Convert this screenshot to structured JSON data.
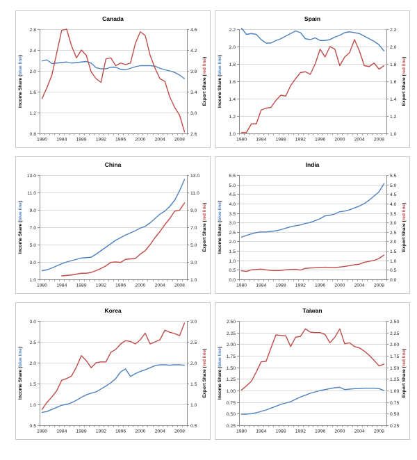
{
  "page": {
    "background": "#FFFFFF"
  },
  "style": {
    "axis_color": "#8C8C8C",
    "grid_color": "#D9D9D9",
    "text_color": "#1F1F1F",
    "panel_border": "#C8C8C8",
    "income_color": "#4F81BD",
    "export_color": "#BE4B48"
  },
  "chart_data": [
    {
      "type": "line",
      "title": "Canada",
      "x_axis": {
        "start_year": 1980,
        "end_year": 2009,
        "ticks": [
          1980,
          1984,
          1988,
          1992,
          1996,
          2000,
          2004,
          2008
        ]
      },
      "left_axis": {
        "label_pre": "Income Share (",
        "label_highlight": "blue line",
        "label_post": ")",
        "highlight_color": "#4F81BD",
        "range": [
          0.8,
          2.8
        ],
        "ticks": [
          "0.8",
          "1.2",
          "1.6",
          "2.0",
          "2.4",
          "2.8"
        ]
      },
      "right_axis": {
        "label_pre": "Export Share (",
        "label_highlight": "red line",
        "label_post": ")",
        "highlight_color": "#BE4B48",
        "range": [
          2.6,
          4.6
        ],
        "ticks": [
          "2.6",
          "3.0",
          "3.4",
          "3.8",
          "4.2",
          "4.6"
        ]
      },
      "series": [
        {
          "name": "Income Share",
          "axis": "left",
          "color": "#4F81BD",
          "start_year": 1980,
          "values": [
            2.19,
            2.21,
            2.14,
            2.15,
            2.16,
            2.17,
            2.15,
            2.16,
            2.17,
            2.18,
            2.15,
            2.06,
            2.04,
            2.04,
            2.07,
            2.07,
            2.03,
            2.02,
            2.05,
            2.08,
            2.1,
            2.1,
            2.1,
            2.09,
            2.05,
            2.02,
            2.0,
            1.97,
            1.92,
            1.85
          ]
        },
        {
          "name": "Export Share",
          "axis": "right",
          "color": "#BE4B48",
          "start_year": 1980,
          "values": [
            3.27,
            3.48,
            3.72,
            4.15,
            4.58,
            4.6,
            4.28,
            4.05,
            4.2,
            4.1,
            3.78,
            3.65,
            3.58,
            4.03,
            4.05,
            3.9,
            3.95,
            3.92,
            3.95,
            4.33,
            4.55,
            4.48,
            4.1,
            3.85,
            3.65,
            3.6,
            3.3,
            3.1,
            2.95,
            2.63
          ]
        }
      ]
    },
    {
      "type": "line",
      "title": "Spain",
      "x_axis": {
        "start_year": 1980,
        "end_year": 2009,
        "ticks": [
          1980,
          1984,
          1988,
          1992,
          1996,
          2000,
          2004,
          2008
        ]
      },
      "left_axis": {
        "label_pre": "Income Share (",
        "label_highlight": "blue line",
        "label_post": ")",
        "highlight_color": "#4F81BD",
        "range": [
          1.0,
          2.2
        ],
        "ticks": [
          "1.0",
          "1.2",
          "1.4",
          "1.6",
          "1.8",
          "2.0",
          "2.2"
        ]
      },
      "right_axis": {
        "label_pre": "Export Share (",
        "label_highlight": "red line",
        "label_post": ")",
        "highlight_color": "#BE4B48",
        "range": [
          1.0,
          2.2
        ],
        "ticks": [
          "1.0",
          "1.2",
          "1.4",
          "1.6",
          "1.8",
          "2.0",
          "2.2"
        ]
      },
      "series": [
        {
          "name": "Income Share",
          "axis": "left",
          "color": "#4F81BD",
          "start_year": 1980,
          "values": [
            2.21,
            2.14,
            2.15,
            2.14,
            2.08,
            2.04,
            2.04,
            2.07,
            2.09,
            2.12,
            2.15,
            2.18,
            2.16,
            2.09,
            2.08,
            2.1,
            2.07,
            2.07,
            2.08,
            2.11,
            2.13,
            2.16,
            2.17,
            2.16,
            2.15,
            2.12,
            2.09,
            2.06,
            2.02,
            1.95
          ]
        },
        {
          "name": "Export Share",
          "axis": "right",
          "color": "#BE4B48",
          "start_year": 1980,
          "values": [
            1.01,
            1.01,
            1.11,
            1.11,
            1.27,
            1.29,
            1.3,
            1.38,
            1.44,
            1.43,
            1.55,
            1.63,
            1.7,
            1.71,
            1.68,
            1.8,
            1.97,
            1.88,
            2.0,
            1.97,
            1.78,
            1.88,
            1.93,
            2.08,
            1.95,
            1.78,
            1.77,
            1.81,
            1.74,
            1.78
          ]
        }
      ]
    },
    {
      "type": "line",
      "title": "China",
      "x_axis": {
        "start_year": 1980,
        "end_year": 2009,
        "ticks": [
          1980,
          1984,
          1988,
          1992,
          1996,
          2000,
          2004,
          2008
        ]
      },
      "left_axis": {
        "label_pre": "Income Share (",
        "label_highlight": "blue line",
        "label_post": ")",
        "highlight_color": "#4F81BD",
        "range": [
          1.0,
          13.0
        ],
        "ticks": [
          "1.0",
          "3.0",
          "5.0",
          "7.0",
          "9.0",
          "11.0",
          "13.0"
        ]
      },
      "right_axis": {
        "label_pre": "Export Share (",
        "label_highlight": "red line",
        "label_post": ")",
        "highlight_color": "#BE4B48",
        "range": [
          1.0,
          13.0
        ],
        "ticks": [
          "1.0",
          "3.0",
          "5.0",
          "7.0",
          "9.0",
          "11.0",
          "13.0"
        ]
      },
      "series": [
        {
          "name": "Income Share",
          "axis": "left",
          "color": "#4F81BD",
          "start_year": 1980,
          "values": [
            2.0,
            2.1,
            2.3,
            2.55,
            2.8,
            3.0,
            3.15,
            3.3,
            3.45,
            3.5,
            3.55,
            3.9,
            4.3,
            4.7,
            5.1,
            5.5,
            5.8,
            6.1,
            6.35,
            6.6,
            6.9,
            7.1,
            7.5,
            8.0,
            8.5,
            8.85,
            9.4,
            10.1,
            11.2,
            12.5
          ]
        },
        {
          "name": "Export Share",
          "axis": "right",
          "color": "#BE4B48",
          "start_year": 1984,
          "values": [
            1.4,
            1.45,
            1.5,
            1.6,
            1.7,
            1.7,
            1.8,
            2.0,
            2.25,
            2.55,
            2.95,
            3.0,
            2.95,
            3.3,
            3.35,
            3.4,
            3.9,
            4.3,
            5.0,
            5.8,
            6.5,
            7.3,
            8.0,
            8.85,
            8.95,
            9.8
          ]
        }
      ]
    },
    {
      "type": "line",
      "title": "India",
      "x_axis": {
        "start_year": 1980,
        "end_year": 2009,
        "ticks": [
          1980,
          1984,
          1988,
          1992,
          1996,
          2000,
          2004,
          2008
        ]
      },
      "left_axis": {
        "label_pre": "Income Share (",
        "label_highlight": "blue line",
        "label_post": ")",
        "highlight_color": "#4F81BD",
        "range": [
          0.0,
          5.5
        ],
        "ticks": [
          "0.0",
          "0.5",
          "1.0",
          "1.5",
          "2.0",
          "2.5",
          "3.0",
          "3.5",
          "4.0",
          "4.5",
          "5.0",
          "5.5"
        ]
      },
      "right_axis": {
        "label_pre": "Export Share (",
        "label_highlight": "red line",
        "label_post": ")",
        "highlight_color": "#BE4B48",
        "range": [
          0.0,
          5.5
        ],
        "ticks": [
          "0.0",
          "0.5",
          "1.0",
          "1.5",
          "2.0",
          "2.5",
          "3.0",
          "3.5",
          "4.0",
          "4.5",
          "5.0",
          "5.5"
        ]
      },
      "series": [
        {
          "name": "Income Share",
          "axis": "left",
          "color": "#4F81BD",
          "start_year": 1980,
          "values": [
            2.23,
            2.32,
            2.4,
            2.47,
            2.5,
            2.5,
            2.53,
            2.56,
            2.62,
            2.7,
            2.77,
            2.83,
            2.87,
            2.95,
            3.0,
            3.1,
            3.2,
            3.35,
            3.38,
            3.45,
            3.57,
            3.6,
            3.67,
            3.77,
            3.87,
            4.0,
            4.18,
            4.4,
            4.62,
            5.05
          ]
        },
        {
          "name": "Export Share",
          "axis": "right",
          "color": "#BE4B48",
          "start_year": 1980,
          "values": [
            0.45,
            0.42,
            0.5,
            0.52,
            0.54,
            0.5,
            0.47,
            0.46,
            0.47,
            0.5,
            0.52,
            0.53,
            0.49,
            0.58,
            0.6,
            0.61,
            0.63,
            0.64,
            0.63,
            0.62,
            0.65,
            0.68,
            0.72,
            0.77,
            0.8,
            0.9,
            0.95,
            1.0,
            1.1,
            1.28
          ]
        }
      ]
    },
    {
      "type": "line",
      "title": "Korea",
      "x_axis": {
        "start_year": 1980,
        "end_year": 2009,
        "ticks": [
          1980,
          1984,
          1988,
          1992,
          1996,
          2000,
          2004,
          2008
        ]
      },
      "left_axis": {
        "label_pre": "Income Share (",
        "label_highlight": "blue line",
        "label_post": ")",
        "highlight_color": "#4F81BD",
        "range": [
          0.5,
          3.0
        ],
        "ticks": [
          "0.5",
          "1.0",
          "1.5",
          "2.0",
          "2.5",
          "3.0"
        ]
      },
      "right_axis": {
        "label_pre": "Export Share (",
        "label_highlight": "red line",
        "label_post": ")",
        "highlight_color": "#BE4B48",
        "range": [
          0.5,
          3.0
        ],
        "ticks": [
          "0.5",
          "1.0",
          "1.5",
          "2.0",
          "2.5",
          "3.0"
        ]
      },
      "series": [
        {
          "name": "Income Share",
          "axis": "left",
          "color": "#4F81BD",
          "start_year": 1980,
          "values": [
            0.81,
            0.83,
            0.88,
            0.93,
            0.98,
            1.0,
            1.04,
            1.1,
            1.17,
            1.23,
            1.27,
            1.3,
            1.37,
            1.44,
            1.52,
            1.62,
            1.78,
            1.85,
            1.67,
            1.74,
            1.79,
            1.83,
            1.88,
            1.93,
            1.95,
            1.95,
            1.94,
            1.95,
            1.95,
            1.94
          ]
        },
        {
          "name": "Export Share",
          "axis": "right",
          "color": "#BE4B48",
          "start_year": 1980,
          "values": [
            0.88,
            1.05,
            1.18,
            1.33,
            1.58,
            1.62,
            1.68,
            1.9,
            2.17,
            2.05,
            1.88,
            2.0,
            2.02,
            2.02,
            2.25,
            2.32,
            2.45,
            2.53,
            2.51,
            2.45,
            2.55,
            2.71,
            2.45,
            2.5,
            2.55,
            2.78,
            2.73,
            2.7,
            2.65,
            2.95
          ]
        }
      ]
    },
    {
      "type": "line",
      "title": "Taiwan",
      "x_axis": {
        "start_year": 1980,
        "end_year": 2009,
        "ticks": [
          1980,
          1984,
          1988,
          1992,
          1996,
          2000,
          2004,
          2008
        ]
      },
      "left_axis": {
        "label_pre": "Income Share (",
        "label_highlight": "blue line",
        "label_post": ")",
        "highlight_color": "#4F81BD",
        "range": [
          0.25,
          2.5
        ],
        "ticks": [
          "0.25",
          "0.50",
          "0.75",
          "1.00",
          "1.25",
          "1.50",
          "1.75",
          "2.00",
          "2.25",
          "2.50"
        ]
      },
      "right_axis": {
        "label_pre": "Export Share (",
        "label_highlight": "red line",
        "label_post": ")",
        "highlight_color": "#BE4B48",
        "range": [
          0.25,
          2.5
        ],
        "ticks": [
          "0.25",
          "0.50",
          "0.75",
          "1.00",
          "1.25",
          "1.50",
          "1.75",
          "2.00",
          "2.25",
          "2.50"
        ]
      },
      "series": [
        {
          "name": "Income Share",
          "axis": "left",
          "color": "#4F81BD",
          "start_year": 1980,
          "values": [
            0.49,
            0.49,
            0.5,
            0.52,
            0.55,
            0.58,
            0.62,
            0.66,
            0.7,
            0.73,
            0.76,
            0.81,
            0.86,
            0.9,
            0.94,
            0.97,
            1.0,
            1.02,
            1.04,
            1.06,
            1.07,
            1.02,
            1.03,
            1.04,
            1.04,
            1.05,
            1.05,
            1.05,
            1.04,
            1.0
          ]
        },
        {
          "name": "Export Share",
          "axis": "right",
          "color": "#BE4B48",
          "start_year": 1980,
          "values": [
            1.01,
            1.1,
            1.2,
            1.4,
            1.62,
            1.63,
            1.92,
            2.2,
            2.19,
            2.18,
            1.95,
            2.15,
            2.17,
            2.33,
            2.26,
            2.25,
            2.25,
            2.21,
            2.03,
            2.15,
            2.33,
            2.01,
            2.03,
            1.95,
            1.92,
            1.85,
            1.76,
            1.65,
            1.53,
            1.57
          ]
        }
      ]
    }
  ]
}
